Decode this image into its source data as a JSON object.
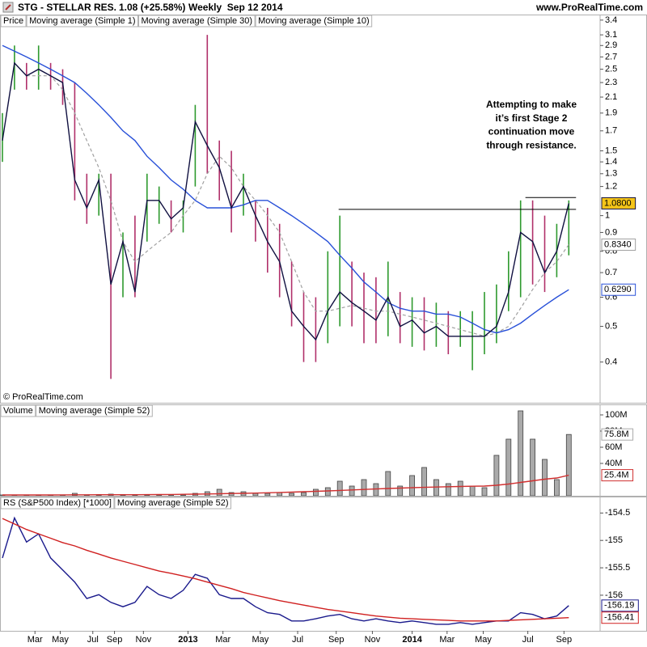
{
  "header": {
    "symbol": "STG - STELLAR RES.",
    "change": "1.08 (+25.58%)",
    "period": "Weekly  Sep 12 2014",
    "site": "www.ProRealTime.com"
  },
  "copyright": "© ProRealTime.com",
  "chart_data": [
    {
      "type": "hlc",
      "label": "Price",
      "log_scale": true,
      "ylim": [
        0.31,
        3.52
      ],
      "yticks": [
        3.4,
        3.1,
        2.9,
        2.7,
        2.5,
        2.3,
        2.1,
        1.9,
        1.7,
        1.5,
        1.4,
        1.3,
        1.2,
        1,
        0.9,
        0.8,
        0.7,
        0.6,
        0.5,
        0.4
      ],
      "up_color": "#2e9a2e",
      "down_color": "#b0306a",
      "bars": {
        "high": [
          1.9,
          2.9,
          2.6,
          2.9,
          2.6,
          2.5,
          2.3,
          1.3,
          1.3,
          1.3,
          0.9,
          1.0,
          1.3,
          1.2,
          1.1,
          1.1,
          2.0,
          3.1,
          1.6,
          1.5,
          1.3,
          1.1,
          1.05,
          0.95,
          0.75,
          0.62,
          0.6,
          0.8,
          1.0,
          0.75,
          0.7,
          0.68,
          0.75,
          0.62,
          0.6,
          0.6,
          0.58,
          0.55,
          0.55,
          0.55,
          0.62,
          0.65,
          0.8,
          1.1,
          1.1,
          1.0,
          0.95,
          1.1
        ],
        "low": [
          1.4,
          2.2,
          2.2,
          2.2,
          2.2,
          2.0,
          1.1,
          0.95,
          1.0,
          0.36,
          0.6,
          0.6,
          0.85,
          0.95,
          0.9,
          0.9,
          1.2,
          1.3,
          1.1,
          0.9,
          1.0,
          0.85,
          0.7,
          0.6,
          0.5,
          0.4,
          0.4,
          0.45,
          0.5,
          0.5,
          0.45,
          0.45,
          0.47,
          0.45,
          0.44,
          0.43,
          0.44,
          0.42,
          0.44,
          0.38,
          0.42,
          0.45,
          0.55,
          0.6,
          0.65,
          0.62,
          0.68,
          0.78
        ]
      },
      "series": [
        {
          "name": "Moving average (Simple 1)",
          "color": "#101040",
          "values": [
            1.6,
            2.6,
            2.4,
            2.5,
            2.4,
            2.3,
            1.25,
            1.05,
            1.25,
            0.65,
            0.85,
            0.62,
            1.1,
            1.1,
            0.98,
            1.05,
            1.8,
            1.55,
            1.35,
            1.05,
            1.2,
            1.0,
            0.85,
            0.75,
            0.55,
            0.5,
            0.46,
            0.55,
            0.62,
            0.58,
            0.55,
            0.52,
            0.6,
            0.5,
            0.52,
            0.48,
            0.5,
            0.47,
            0.47,
            0.47,
            0.47,
            0.5,
            0.62,
            0.9,
            0.85,
            0.7,
            0.8,
            1.08
          ],
          "value_labels": {
            "47": "1.0800"
          },
          "label_fill": "#f5c518"
        },
        {
          "name": "Moving average (Simple 30)",
          "color": "#2850d8",
          "values": [
            2.9,
            2.8,
            2.7,
            2.6,
            2.5,
            2.4,
            2.3,
            2.15,
            2.0,
            1.85,
            1.7,
            1.6,
            1.45,
            1.35,
            1.25,
            1.18,
            1.1,
            1.05,
            1.05,
            1.05,
            1.07,
            1.1,
            1.1,
            1.05,
            1.0,
            0.95,
            0.9,
            0.85,
            0.78,
            0.72,
            0.66,
            0.62,
            0.58,
            0.56,
            0.55,
            0.55,
            0.54,
            0.54,
            0.53,
            0.51,
            0.49,
            0.48,
            0.49,
            0.51,
            0.54,
            0.57,
            0.6,
            0.629
          ],
          "value_labels": {
            "47": "0.6290"
          }
        },
        {
          "name": "Moving average (Simple 10)",
          "color": "#a0a0a0",
          "dashed": true,
          "values": [
            null,
            null,
            2.4,
            2.4,
            2.4,
            2.2,
            1.9,
            1.6,
            1.35,
            1.1,
            0.85,
            0.75,
            0.8,
            0.85,
            0.9,
            1.0,
            1.1,
            1.3,
            1.45,
            1.35,
            1.2,
            1.1,
            1.0,
            0.9,
            0.75,
            0.62,
            0.55,
            0.55,
            0.56,
            0.57,
            0.56,
            0.55,
            0.55,
            0.54,
            0.53,
            0.52,
            0.51,
            0.5,
            0.49,
            0.48,
            0.47,
            0.48,
            0.5,
            0.56,
            0.63,
            0.7,
            0.75,
            0.834
          ],
          "value_labels": {
            "47": "0.8340"
          }
        }
      ],
      "resistance": [
        {
          "value": 1.04,
          "from": 27.9,
          "to": 47.6
        },
        {
          "value": 1.12,
          "from": 43.4,
          "to": 47.6
        }
      ],
      "annotation": [
        "Attempting to make",
        "it’s first Stage 2",
        "continuation move",
        "through resistance."
      ]
    },
    {
      "type": "bar",
      "label": "Volume",
      "ylim": [
        0,
        113000000
      ],
      "yticks": [
        {
          "value": 100000000,
          "label": "100M"
        },
        {
          "value": 80000000,
          "label": "80M"
        },
        {
          "value": 60000000,
          "label": "60M"
        },
        {
          "value": 40000000,
          "label": "40M"
        }
      ],
      "series": [
        {
          "type": "bar",
          "color": "#aaaaaa",
          "values": [
            1000000,
            1000000,
            1000000,
            1000000,
            1000000,
            1000000,
            3000000,
            1000000,
            1000000,
            2000000,
            1000000,
            1000000,
            1000000,
            1000000,
            1000000,
            1000000,
            3000000,
            5000000,
            8000000,
            4000000,
            5000000,
            3000000,
            3000000,
            4000000,
            3000000,
            4000000,
            8000000,
            10000000,
            18000000,
            12000000,
            20000000,
            15000000,
            30000000,
            12000000,
            25000000,
            35000000,
            20000000,
            15000000,
            18000000,
            12000000,
            10000000,
            50000000,
            70000000,
            105000000,
            70000000,
            45000000,
            20000000,
            75800000
          ],
          "value_labels": {
            "47": "75.8M"
          }
        },
        {
          "type": "line",
          "name": "Moving average (Simple 52)",
          "color": "#d03030",
          "values": [
            1000000,
            1000000,
            1000000,
            1000000,
            1000000,
            1100000,
            1200000,
            1200000,
            1300000,
            1300000,
            1300000,
            1300000,
            1400000,
            1500000,
            1600000,
            1800000,
            2000000,
            2200000,
            2500000,
            2800000,
            3000000,
            3300000,
            3700000,
            4100000,
            4500000,
            5000000,
            5500000,
            6000000,
            6600000,
            7200000,
            7800000,
            8400000,
            9000000,
            9500000,
            10000000,
            10400000,
            10800000,
            11200000,
            11500000,
            11800000,
            12000000,
            13000000,
            14500000,
            16500000,
            18500000,
            20500000,
            22000000,
            25400000
          ],
          "value_labels": {
            "47": "25.4M"
          }
        }
      ]
    },
    {
      "type": "line",
      "label": "RS (S&P500 Index) [*1000]",
      "ylim": [
        -156.65,
        -154.2
      ],
      "yticks": [
        -154.5,
        -155,
        -155.5,
        -156
      ],
      "xticks": [
        {
          "value": 2.7,
          "label": "Mar"
        },
        {
          "value": 4.8,
          "label": "May"
        },
        {
          "value": 7.5,
          "label": "Jul"
        },
        {
          "value": 9.3,
          "label": "Sep"
        },
        {
          "value": 11.7,
          "label": "Nov"
        },
        {
          "value": 15.4,
          "label": "2013"
        },
        {
          "value": 18.3,
          "label": "Mar"
        },
        {
          "value": 21.4,
          "label": "May"
        },
        {
          "value": 24.5,
          "label": "Jul"
        },
        {
          "value": 27.7,
          "label": "Sep"
        },
        {
          "value": 30.7,
          "label": "Nov"
        },
        {
          "value": 34,
          "label": "2014"
        },
        {
          "value": 36.9,
          "label": "Mar"
        },
        {
          "value": 39.9,
          "label": "May"
        },
        {
          "value": 43.6,
          "label": "Jul"
        },
        {
          "value": 46.6,
          "label": "Sep"
        }
      ],
      "series": [
        {
          "type": "line",
          "color": "#1a1a8c",
          "values": [
            -155.32,
            -154.59,
            -155.03,
            -154.88,
            -155.32,
            -155.54,
            -155.76,
            -156.06,
            -155.99,
            -156.13,
            -156.21,
            -156.13,
            -155.84,
            -155.99,
            -156.06,
            -155.91,
            -155.62,
            -155.69,
            -155.99,
            -156.06,
            -156.06,
            -156.21,
            -156.32,
            -156.35,
            -156.47,
            -156.47,
            -156.43,
            -156.38,
            -156.35,
            -156.43,
            -156.47,
            -156.43,
            -156.47,
            -156.5,
            -156.47,
            -156.5,
            -156.53,
            -156.53,
            -156.5,
            -156.53,
            -156.5,
            -156.47,
            -156.47,
            -156.32,
            -156.35,
            -156.43,
            -156.38,
            -156.19
          ],
          "value_labels": {
            "47": "-156.19"
          }
        },
        {
          "type": "line",
          "name": "Moving average (Simple 52)",
          "color": "#d02020",
          "values": [
            -154.6,
            -154.7,
            -154.8,
            -154.88,
            -154.96,
            -155.04,
            -155.1,
            -155.18,
            -155.25,
            -155.32,
            -155.38,
            -155.44,
            -155.5,
            -155.56,
            -155.6,
            -155.65,
            -155.7,
            -155.76,
            -155.82,
            -155.88,
            -155.95,
            -156.0,
            -156.05,
            -156.1,
            -156.14,
            -156.18,
            -156.22,
            -156.26,
            -156.29,
            -156.32,
            -156.35,
            -156.38,
            -156.4,
            -156.42,
            -156.43,
            -156.44,
            -156.45,
            -156.46,
            -156.47,
            -156.47,
            -156.47,
            -156.47,
            -156.46,
            -156.45,
            -156.44,
            -156.43,
            -156.42,
            -156.41
          ],
          "value_labels": {
            "47": "-156.41"
          }
        }
      ]
    }
  ]
}
